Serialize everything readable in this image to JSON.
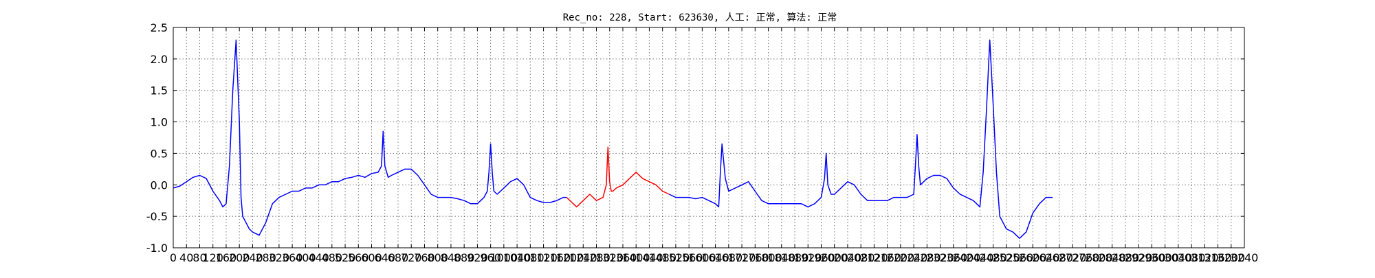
{
  "chart_data": {
    "type": "line",
    "title": "Rec_no: 228, Start: 623630, 人工: 正常, 算法: 正常",
    "xlabel": "",
    "ylabel": "",
    "xlim": [
      0,
      3240
    ],
    "ylim": [
      -1.0,
      2.5
    ],
    "grid": true,
    "x_ticks": [
      0,
      40,
      80,
      120,
      160,
      200,
      240,
      280,
      320,
      360,
      400,
      440,
      480,
      520,
      560,
      600,
      640,
      680,
      720,
      760,
      800,
      840,
      880,
      920,
      960,
      1000,
      1040,
      1080,
      1120,
      1160,
      1200,
      1240,
      1280,
      1320,
      1360,
      1400,
      1440,
      1480,
      1520,
      1560,
      1600,
      1640,
      1680,
      1720,
      1760,
      1800,
      1840,
      1880,
      1920,
      1960,
      2000,
      2040,
      2080,
      2120,
      2160,
      2200,
      2240,
      2280,
      2320,
      2360,
      2400,
      2440,
      2480,
      2520,
      2560,
      2600,
      2640,
      2680,
      2720,
      2760,
      2800,
      2840,
      2880,
      2920,
      2960,
      3000,
      3040,
      3080,
      3120,
      3160,
      3200,
      3240
    ],
    "y_ticks": [
      "-1.0",
      "-0.5",
      "0.0",
      "0.5",
      "1.0",
      "1.5",
      "2.0",
      "2.5"
    ],
    "series": [
      {
        "color": "#0000ff",
        "x": [
          0,
          20,
          40,
          60,
          80,
          100,
          120,
          140,
          150,
          160,
          170,
          180,
          190,
          200,
          205,
          210,
          215,
          220,
          230,
          240,
          260,
          280,
          300,
          320,
          340,
          360,
          380,
          400,
          420,
          440,
          460,
          480,
          500,
          520,
          540,
          560,
          580,
          600,
          620,
          630,
          635,
          640,
          650,
          660,
          680,
          700,
          720,
          740,
          760,
          780,
          800,
          820,
          840,
          860,
          880,
          900,
          920,
          940,
          950,
          955,
          960,
          965,
          970,
          980,
          1000,
          1020,
          1040,
          1060,
          1080,
          1100,
          1120,
          1140,
          1160,
          1180,
          1190
        ],
        "y": [
          -0.05,
          -0.02,
          0.05,
          0.12,
          0.15,
          0.1,
          -0.1,
          -0.25,
          -0.35,
          -0.3,
          0.3,
          1.5,
          2.3,
          1.0,
          -0.2,
          -0.5,
          -0.55,
          -0.6,
          -0.7,
          -0.75,
          -0.8,
          -0.6,
          -0.3,
          -0.2,
          -0.15,
          -0.1,
          -0.1,
          -0.05,
          -0.05,
          0.0,
          0.0,
          0.05,
          0.05,
          0.1,
          0.12,
          0.15,
          0.12,
          0.18,
          0.2,
          0.3,
          0.85,
          0.3,
          0.12,
          0.15,
          0.2,
          0.25,
          0.25,
          0.15,
          0.0,
          -0.15,
          -0.2,
          -0.2,
          -0.2,
          -0.22,
          -0.25,
          -0.3,
          -0.3,
          -0.2,
          -0.1,
          0.2,
          0.65,
          0.2,
          -0.1,
          -0.15,
          -0.05,
          0.05,
          0.1,
          0.0,
          -0.2,
          -0.25,
          -0.28,
          -0.28,
          -0.25,
          -0.2,
          -0.2
        ]
      },
      {
        "color": "#ff0000",
        "x": [
          1190,
          1200,
          1220,
          1240,
          1260,
          1280,
          1300,
          1310,
          1315,
          1320,
          1325,
          1330,
          1340,
          1360,
          1380,
          1400,
          1420,
          1440,
          1460,
          1480,
          1500
        ],
        "y": [
          -0.2,
          -0.25,
          -0.35,
          -0.25,
          -0.15,
          -0.25,
          -0.2,
          0.0,
          0.6,
          0.05,
          -0.1,
          -0.1,
          -0.05,
          0.0,
          0.1,
          0.2,
          0.1,
          0.05,
          0.0,
          -0.1,
          -0.15
        ]
      },
      {
        "color": "#0000ff",
        "x": [
          1500,
          1520,
          1540,
          1560,
          1580,
          1600,
          1620,
          1640,
          1650,
          1655,
          1660,
          1670,
          1680,
          1700,
          1720,
          1740,
          1760,
          1780,
          1800,
          1820,
          1840,
          1860,
          1880,
          1900,
          1920,
          1940,
          1960,
          1970,
          1975,
          1980,
          1990,
          2000,
          2020,
          2040,
          2060,
          2080,
          2100,
          2120,
          2140,
          2160,
          2180,
          2200,
          2220,
          2240,
          2245,
          2250,
          2255,
          2260,
          2280,
          2300,
          2320,
          2340,
          2360,
          2380,
          2400,
          2420,
          2440,
          2450,
          2460,
          2470,
          2480,
          2490,
          2500,
          2510,
          2520,
          2540,
          2560,
          2580,
          2600,
          2620,
          2640,
          2660
        ],
        "y": [
          -0.15,
          -0.2,
          -0.2,
          -0.2,
          -0.22,
          -0.2,
          -0.25,
          -0.3,
          -0.35,
          0.2,
          0.65,
          0.1,
          -0.1,
          -0.05,
          0.0,
          0.05,
          -0.1,
          -0.25,
          -0.3,
          -0.3,
          -0.3,
          -0.3,
          -0.3,
          -0.3,
          -0.35,
          -0.3,
          -0.2,
          0.1,
          0.5,
          0.0,
          -0.15,
          -0.15,
          -0.05,
          0.05,
          0.0,
          -0.15,
          -0.25,
          -0.25,
          -0.25,
          -0.25,
          -0.2,
          -0.2,
          -0.2,
          -0.15,
          0.3,
          0.8,
          0.3,
          0.0,
          0.1,
          0.15,
          0.15,
          0.1,
          -0.05,
          -0.15,
          -0.2,
          -0.25,
          -0.35,
          0.2,
          1.2,
          2.3,
          1.3,
          0.2,
          -0.5,
          -0.6,
          -0.7,
          -0.75,
          -0.85,
          -0.75,
          -0.45,
          -0.3,
          -0.2,
          -0.2
        ]
      }
    ]
  }
}
